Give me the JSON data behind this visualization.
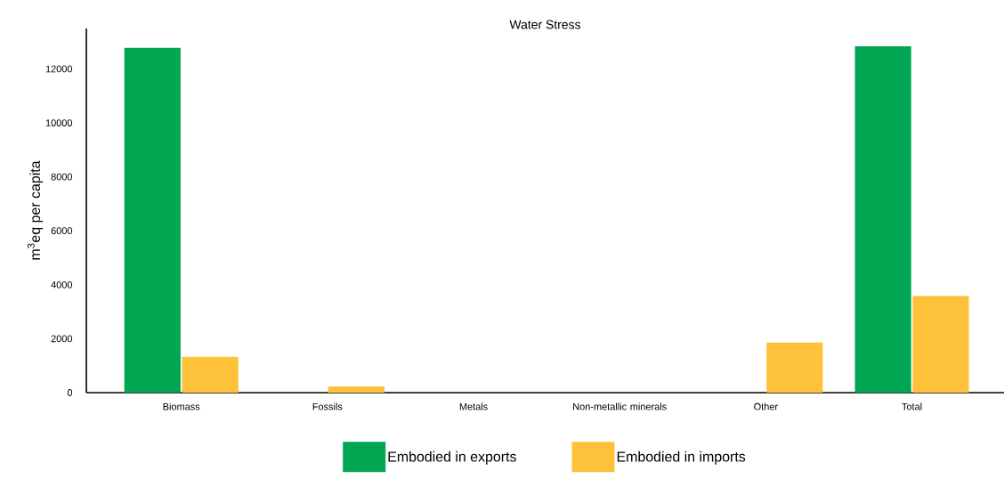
{
  "chart_data": {
    "type": "bar",
    "title": "Water Stress",
    "ylabel": "m$^{3}$eq per capita",
    "categories": [
      "Biomass",
      "Fossils",
      "Metals",
      "Non-metallic minerals",
      "Other",
      "Total"
    ],
    "series": [
      {
        "name": "Embodied in exports",
        "color": "#00a651",
        "values": [
          12780,
          0,
          0,
          0,
          0,
          12840
        ]
      },
      {
        "name": "Embodied in imports",
        "color": "#fdc239",
        "values": [
          1330,
          230,
          0,
          0,
          1860,
          3580
        ]
      }
    ],
    "ylim": [
      0,
      13500
    ],
    "yticks": [
      0,
      2000,
      4000,
      6000,
      8000,
      10000,
      12000
    ],
    "legend": "bottom"
  }
}
